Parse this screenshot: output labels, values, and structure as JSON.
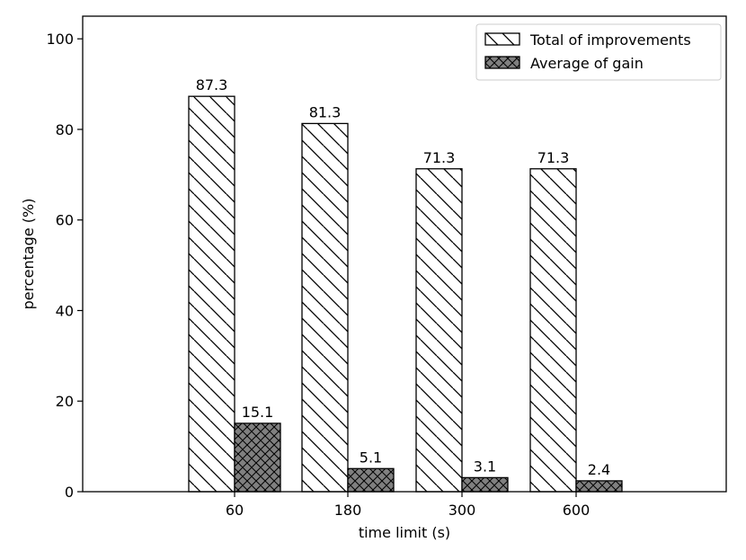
{
  "chart_data": {
    "type": "bar",
    "categories": [
      "60",
      "180",
      "300",
      "600"
    ],
    "series": [
      {
        "name": "Total of improvements",
        "values": [
          87.3,
          81.3,
          71.3,
          71.3
        ],
        "pattern": "diagonal-hatch",
        "fill": "#ffffff"
      },
      {
        "name": "Average of gain",
        "values": [
          15.1,
          5.1,
          3.1,
          2.4
        ],
        "pattern": "crosshatch",
        "fill": "#808080"
      }
    ],
    "data_labels": [
      [
        "87.3",
        "81.3",
        "71.3",
        "71.3"
      ],
      [
        "15.1",
        "5.1",
        "3.1",
        "2.4"
      ]
    ],
    "xlabel": "time limit (s)",
    "ylabel": "percentage (%)",
    "ylim": [
      0,
      105
    ],
    "yticks": [
      "0",
      "20",
      "40",
      "60",
      "80",
      "100"
    ],
    "legend_position": "top-right",
    "grid": false
  }
}
